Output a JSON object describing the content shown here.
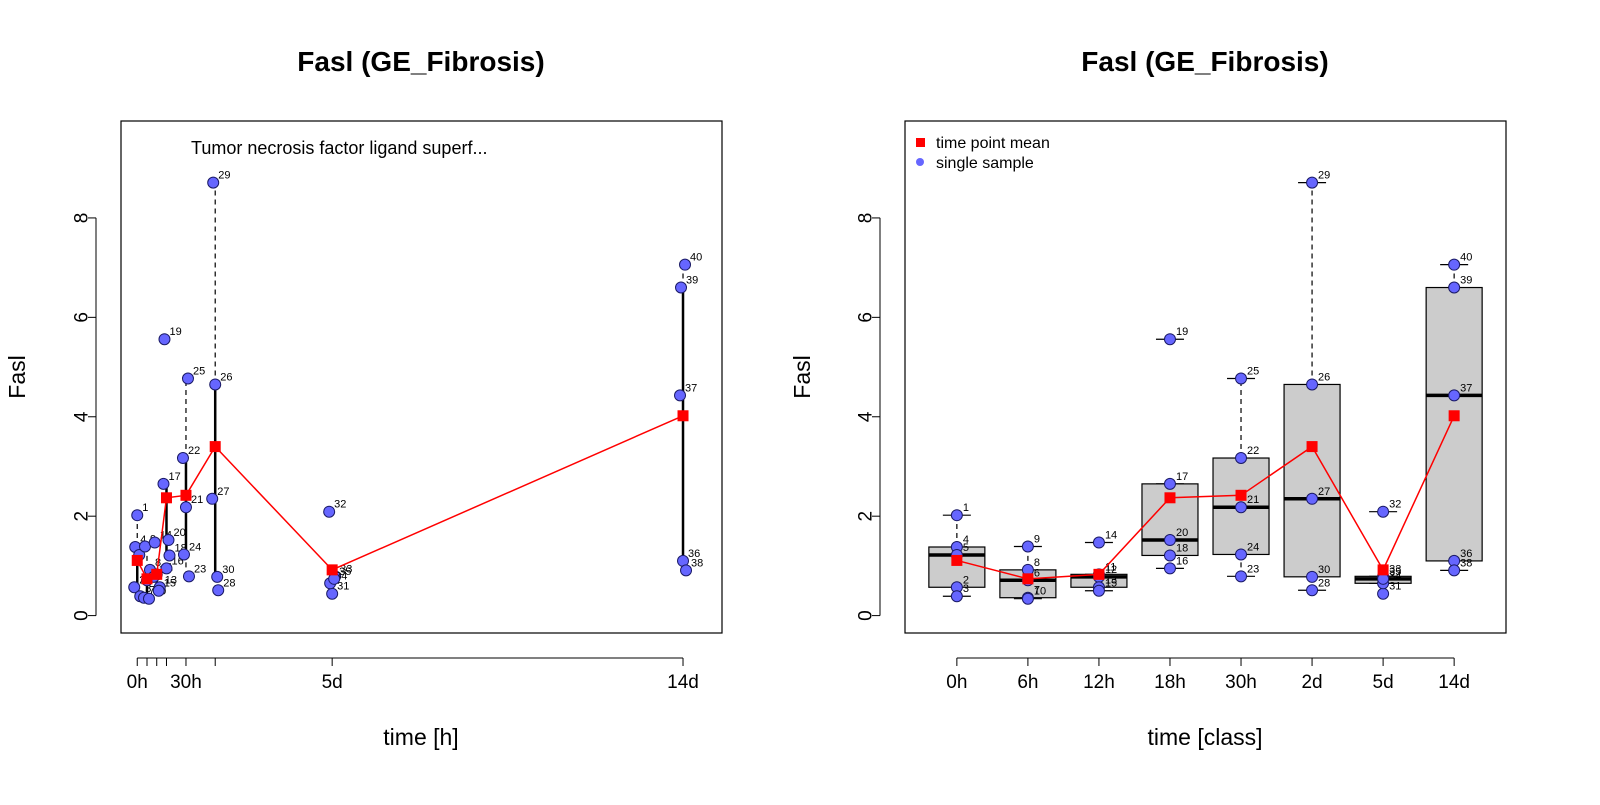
{
  "chart_data": [
    {
      "type": "scatter",
      "title": "Fasl (GE_Fibrosis)",
      "xlabel": "time [h]",
      "ylabel": "Fasl",
      "annotation": "Tumor necrosis factor ligand superf...",
      "x_tick_labels": [
        "0h",
        "30h",
        "5d",
        "14d"
      ],
      "x_ticks_hours": [
        0,
        6,
        12,
        18,
        30,
        48,
        120,
        336
      ],
      "xlim": [
        -10,
        360
      ],
      "ylim": [
        -0.35,
        9.95
      ],
      "y_ticks": [
        "0",
        "2",
        "4",
        "6",
        "8"
      ],
      "grid": false,
      "series": [
        {
          "role": "samples",
          "color": "#6666ff",
          "points": [
            {
              "label": "1",
              "x": 0,
              "y": 2.02
            },
            {
              "label": "2",
              "x": 0,
              "y": 0.57
            },
            {
              "label": "3",
              "x": 0,
              "y": 0.39
            },
            {
              "label": "4",
              "x": 0,
              "y": 1.38
            },
            {
              "label": "5",
              "x": 0,
              "y": 1.22
            },
            {
              "label": "6",
              "x": 6,
              "y": 0.71
            },
            {
              "label": "7",
              "x": 6,
              "y": 0.36
            },
            {
              "label": "8",
              "x": 6,
              "y": 0.92
            },
            {
              "label": "9",
              "x": 6,
              "y": 1.39
            },
            {
              "label": "10",
              "x": 6,
              "y": 0.34
            },
            {
              "label": "11",
              "x": 12,
              "y": 0.83
            },
            {
              "label": "12",
              "x": 12,
              "y": 0.78
            },
            {
              "label": "13",
              "x": 12,
              "y": 0.57
            },
            {
              "label": "14",
              "x": 12,
              "y": 1.47
            },
            {
              "label": "15",
              "x": 12,
              "y": 0.5
            },
            {
              "label": "16",
              "x": 18,
              "y": 0.95
            },
            {
              "label": "17",
              "x": 18,
              "y": 2.65
            },
            {
              "label": "18",
              "x": 18,
              "y": 1.21
            },
            {
              "label": "19",
              "x": 18,
              "y": 5.56
            },
            {
              "label": "20",
              "x": 18,
              "y": 1.52
            },
            {
              "label": "21",
              "x": 30,
              "y": 2.18
            },
            {
              "label": "22",
              "x": 30,
              "y": 3.17
            },
            {
              "label": "23",
              "x": 30,
              "y": 0.79
            },
            {
              "label": "24",
              "x": 30,
              "y": 1.23
            },
            {
              "label": "25",
              "x": 30,
              "y": 4.77
            },
            {
              "label": "26",
              "x": 48,
              "y": 4.65
            },
            {
              "label": "27",
              "x": 48,
              "y": 2.35
            },
            {
              "label": "28",
              "x": 48,
              "y": 0.51
            },
            {
              "label": "29",
              "x": 48,
              "y": 8.71
            },
            {
              "label": "30",
              "x": 48,
              "y": 0.78
            },
            {
              "label": "31",
              "x": 120,
              "y": 0.44
            },
            {
              "label": "32",
              "x": 120,
              "y": 2.09
            },
            {
              "label": "33",
              "x": 120,
              "y": 0.79
            },
            {
              "label": "34",
              "x": 120,
              "y": 0.65
            },
            {
              "label": "35",
              "x": 120,
              "y": 0.74
            },
            {
              "label": "36",
              "x": 336,
              "y": 1.1
            },
            {
              "label": "37",
              "x": 336,
              "y": 4.43
            },
            {
              "label": "38",
              "x": 336,
              "y": 0.91
            },
            {
              "label": "39",
              "x": 336,
              "y": 6.6
            },
            {
              "label": "40",
              "x": 336,
              "y": 7.06
            }
          ]
        },
        {
          "role": "means",
          "color": "#ff0000",
          "x": [
            0,
            6,
            12,
            18,
            30,
            48,
            120,
            336
          ],
          "values": [
            1.11,
            0.74,
            0.83,
            2.37,
            2.42,
            3.4,
            0.92,
            4.02
          ]
        }
      ]
    },
    {
      "type": "box",
      "title": "Fasl (GE_Fibrosis)",
      "xlabel": "time [class]",
      "ylabel": "Fasl",
      "categories": [
        "0h",
        "6h",
        "12h",
        "18h",
        "30h",
        "2d",
        "5d",
        "14d"
      ],
      "ylim": [
        -0.35,
        9.95
      ],
      "y_ticks": [
        "0",
        "2",
        "4",
        "6",
        "8"
      ],
      "grid": false,
      "legend": {
        "position": "top-left",
        "items": [
          {
            "label": "time point mean",
            "color": "#ff0000",
            "marker": "square"
          },
          {
            "label": "single sample",
            "color": "#6666ff",
            "marker": "circle"
          }
        ]
      },
      "box_fill": "#cccccc",
      "boxes": [
        {
          "whisker_low": 0.39,
          "q1": 0.57,
          "median": 1.22,
          "q3": 1.38,
          "whisker_high": 2.02
        },
        {
          "whisker_low": 0.34,
          "q1": 0.36,
          "median": 0.71,
          "q3": 0.92,
          "whisker_high": 1.39
        },
        {
          "whisker_low": 0.5,
          "q1": 0.57,
          "median": 0.78,
          "q3": 0.83,
          "whisker_high": 0.83,
          "outlier_cap": 1.47
        },
        {
          "whisker_low": 0.95,
          "q1": 1.21,
          "median": 1.52,
          "q3": 2.65,
          "whisker_high": 2.65,
          "outlier_cap": 5.56
        },
        {
          "whisker_low": 0.79,
          "q1": 1.23,
          "median": 2.18,
          "q3": 3.17,
          "whisker_high": 4.77
        },
        {
          "whisker_low": 0.51,
          "q1": 0.78,
          "median": 2.35,
          "q3": 4.65,
          "whisker_high": 8.71
        },
        {
          "whisker_low": 0.65,
          "q1": 0.65,
          "median": 0.74,
          "q3": 0.79,
          "whisker_high": 0.79,
          "outlier_cap": 2.09
        },
        {
          "whisker_low": 0.91,
          "q1": 1.1,
          "median": 4.43,
          "q3": 6.6,
          "whisker_high": 7.06
        }
      ],
      "means": [
        1.11,
        0.74,
        0.83,
        2.37,
        2.42,
        3.4,
        0.92,
        4.02
      ]
    }
  ]
}
